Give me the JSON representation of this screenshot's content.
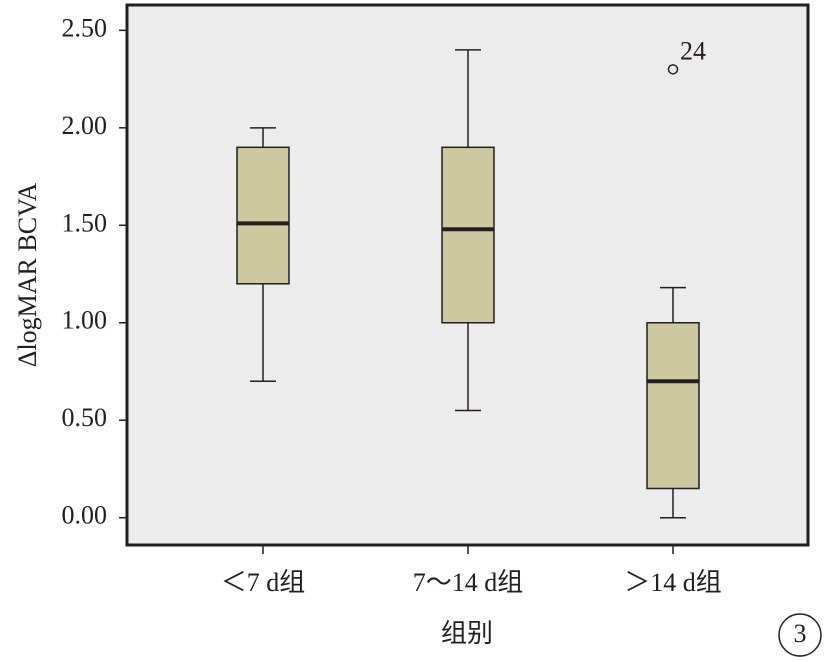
{
  "chart_data": {
    "type": "box",
    "x_label": "组别",
    "y_label": "ΔlogMAR BCVA",
    "panel_label": "3",
    "categories": [
      "＜7 d组",
      "7～14 d组",
      "＞14 d组"
    ],
    "boxes": [
      {
        "whislo": 0.7,
        "q1": 1.2,
        "med": 1.51,
        "q3": 1.9,
        "whishi": 2.0,
        "outliers": []
      },
      {
        "whislo": 0.55,
        "q1": 1.0,
        "med": 1.48,
        "q3": 1.9,
        "whishi": 2.4,
        "outliers": []
      },
      {
        "whislo": 0.0,
        "q1": 0.15,
        "med": 0.7,
        "q3": 1.0,
        "whishi": 1.18,
        "outliers": [
          {
            "value": 2.3,
            "case": "24"
          }
        ]
      }
    ],
    "color": "#cdc89e",
    "background": "#ececec",
    "ylim": [
      -0.14,
      2.63
    ],
    "yticks": [
      {
        "value": 0,
        "label": "0.00"
      },
      {
        "value": 0.5,
        "label": "0.50"
      },
      {
        "value": 1,
        "label": "1.00"
      },
      {
        "value": 1.5,
        "label": "1.50"
      },
      {
        "value": 2,
        "label": "2.00"
      },
      {
        "value": 2.5,
        "label": "2.50"
      }
    ]
  }
}
